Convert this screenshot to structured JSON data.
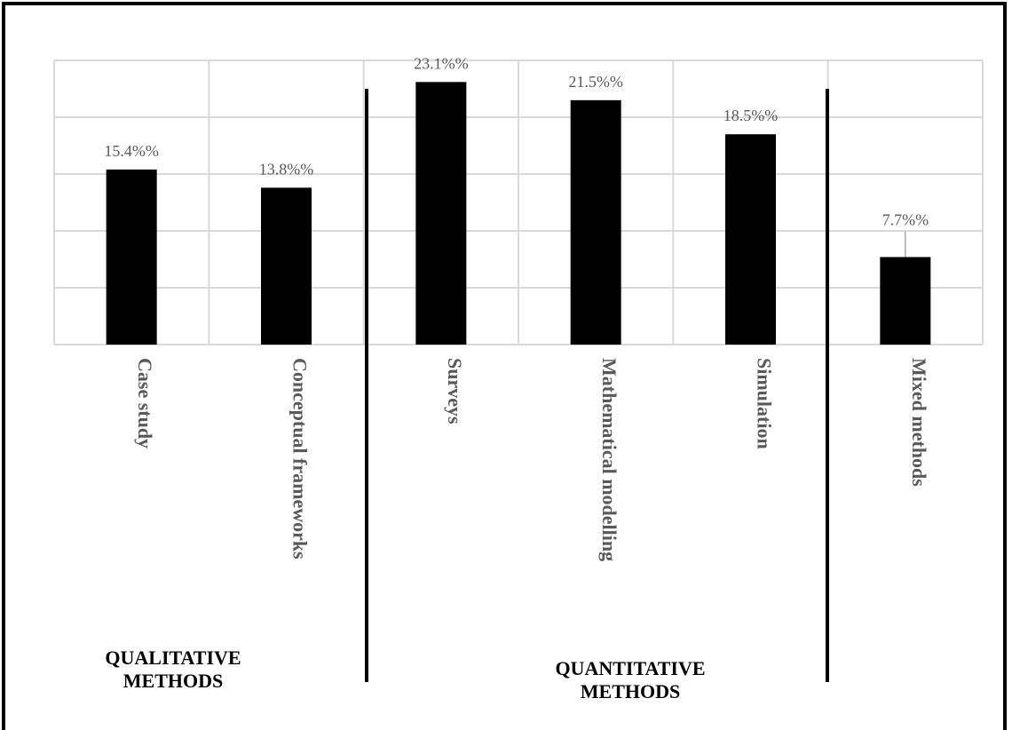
{
  "chart_data": {
    "type": "bar",
    "categories": [
      "Case study",
      "Conceptual frameworks",
      "Surveys",
      "Mathematical modelling",
      "Simulation",
      "Mixed methods"
    ],
    "values": [
      15.4,
      13.8,
      23.1,
      21.5,
      18.5,
      7.7
    ],
    "data_labels": [
      "15.4%%",
      "13.8%%",
      "23.1%%",
      "21.5%%",
      "18.5%%",
      "7.7%%"
    ],
    "ylim": [
      0,
      25
    ],
    "grid": true,
    "bar_color": "#000000",
    "grid_color": "#d9d9d9",
    "label_color": "#595959",
    "groups": [
      {
        "label_line1": "QUALITATIVE",
        "label_line2": "METHODS",
        "categories": [
          "Case study",
          "Conceptual frameworks"
        ]
      },
      {
        "label_line1": "QUANTITATIVE",
        "label_line2": "METHODS",
        "categories": [
          "Surveys",
          "Mathematical modelling",
          "Simulation"
        ]
      }
    ]
  }
}
